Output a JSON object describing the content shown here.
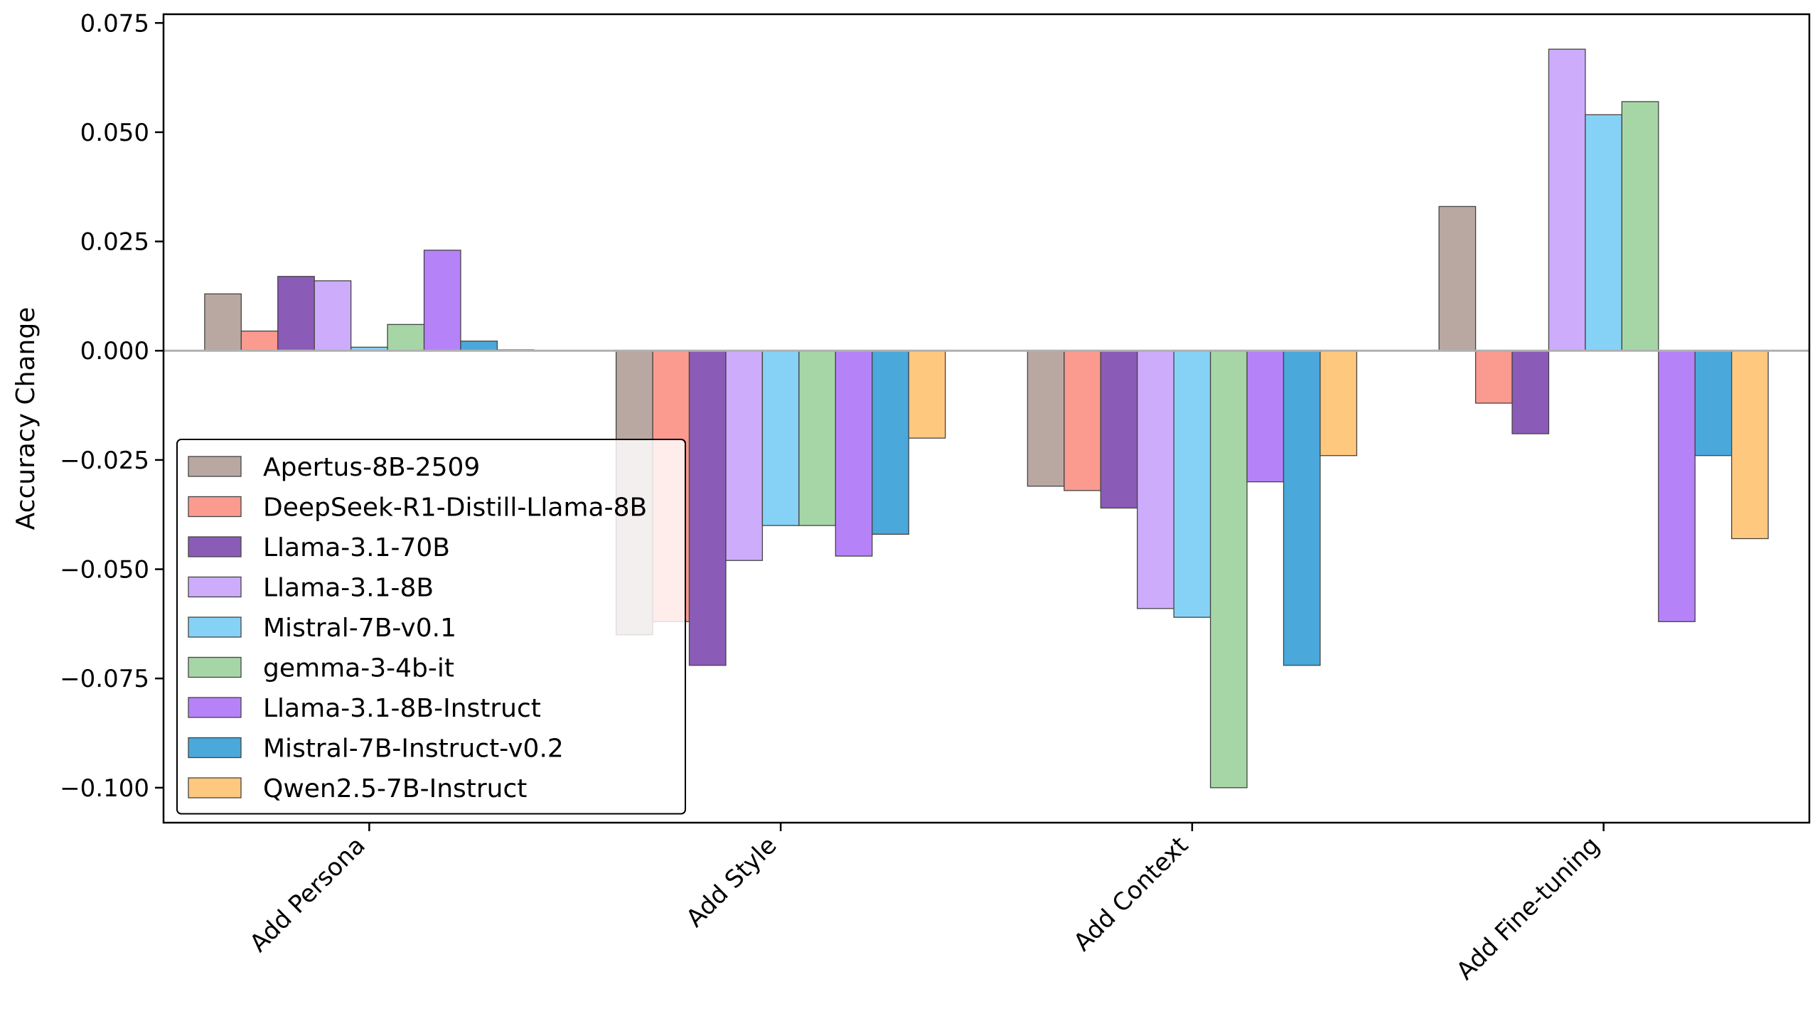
{
  "chart_data": {
    "type": "bar",
    "title": "",
    "xlabel": "",
    "ylabel": "Accuracy Change",
    "categories": [
      "Add Persona",
      "Add Style",
      "Add Context",
      "Add Fine-tuning"
    ],
    "ylim": [
      -0.108,
      0.077
    ],
    "yticks": [
      {
        "value": 0.075,
        "label": "0.075"
      },
      {
        "value": 0.05,
        "label": "0.050"
      },
      {
        "value": 0.025,
        "label": "0.025"
      },
      {
        "value": 0.0,
        "label": "0.000"
      },
      {
        "value": -0.025,
        "label": "−0.025"
      },
      {
        "value": -0.05,
        "label": "−0.050"
      },
      {
        "value": -0.075,
        "label": "−0.075"
      },
      {
        "value": -0.1,
        "label": "−0.100"
      }
    ],
    "zero_line": true,
    "grid": false,
    "legend_position": "lower-left",
    "series": [
      {
        "name": "Apertus-8B-2509",
        "color": "#b9a8a2",
        "values": [
          0.013,
          -0.065,
          -0.031,
          0.033
        ]
      },
      {
        "name": "DeepSeek-R1-Distill-Llama-8B",
        "color": "#fb9a8f",
        "values": [
          0.0045,
          -0.062,
          -0.032,
          -0.012
        ]
      },
      {
        "name": "Llama-3.1-70B",
        "color": "#8b5bb8",
        "values": [
          0.017,
          -0.072,
          -0.036,
          -0.019
        ]
      },
      {
        "name": "Llama-3.1-8B",
        "color": "#cdacfb",
        "values": [
          0.016,
          -0.048,
          -0.059,
          0.069
        ]
      },
      {
        "name": "Mistral-7B-v0.1",
        "color": "#86d2f6",
        "values": [
          0.0008,
          -0.04,
          -0.061,
          0.054
        ]
      },
      {
        "name": "gemma-3-4b-it",
        "color": "#a7d6a6",
        "values": [
          0.006,
          -0.04,
          -0.1,
          0.057
        ]
      },
      {
        "name": "Llama-3.1-8B-Instruct",
        "color": "#b682f8",
        "values": [
          0.023,
          -0.047,
          -0.03,
          -0.062
        ]
      },
      {
        "name": "Mistral-7B-Instruct-v0.2",
        "color": "#4aa8db",
        "values": [
          0.0022,
          -0.042,
          -0.072,
          -0.024
        ]
      },
      {
        "name": "Qwen2.5-7B-Instruct",
        "color": "#fec97f",
        "values": [
          0.0002,
          -0.02,
          -0.024,
          -0.043
        ]
      }
    ]
  }
}
